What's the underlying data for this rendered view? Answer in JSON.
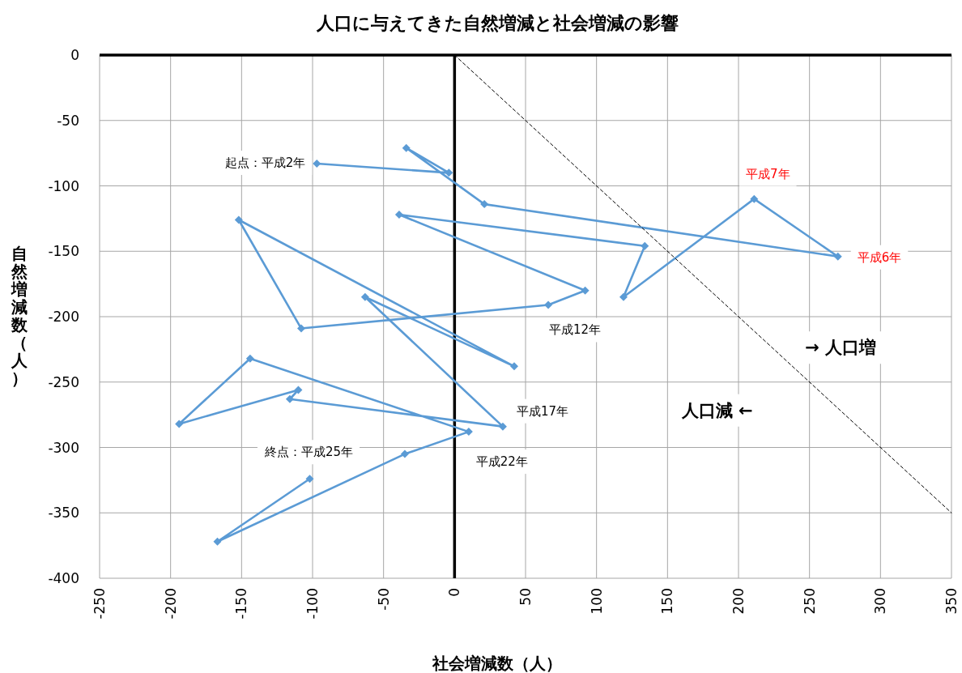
{
  "chart_data": {
    "type": "line",
    "title": "人口に与えてきた自然増減と社会増減の影響",
    "xlabel": "社会増減数（人）",
    "ylabel": "自然増減数（人）",
    "xlim": [
      -250,
      350
    ],
    "xticks": [
      -250,
      -200,
      -150,
      -100,
      -50,
      0,
      50,
      100,
      150,
      200,
      250,
      300,
      350
    ],
    "ylim": [
      -400,
      0
    ],
    "yticks": [
      -400,
      -350,
      -300,
      -250,
      -200,
      -150,
      -100,
      -50,
      0
    ],
    "grid": true,
    "series": [
      {
        "color": "#5b9bd5",
        "marker": "diamond",
        "line_style": "solid",
        "x": [
          -97,
          -4,
          -34,
          21,
          270,
          211,
          119,
          134,
          -39,
          92,
          66,
          -108,
          -152,
          42,
          -63,
          34,
          -116,
          -110,
          -194,
          -144,
          10,
          -35,
          -167,
          -102
        ],
        "values": [
          -83,
          -90,
          -71,
          -114,
          -154,
          -110,
          -185,
          -146,
          -122,
          -180,
          -191,
          -209,
          -126,
          -238,
          -185,
          -284,
          -263,
          -256,
          -282,
          -232,
          -288,
          -305,
          -372,
          -324
        ]
      },
      {
        "color": "#000000",
        "marker": "none",
        "line_style": "dashed",
        "x": [
          0,
          350
        ],
        "values": [
          0,
          -350
        ]
      }
    ],
    "annotations": [
      {
        "text": "起点：平成2年",
        "x": -97,
        "y": -83
      },
      {
        "text": "平成6年",
        "x": 270,
        "y": -154
      },
      {
        "text": "平成7年",
        "x": 211,
        "y": -110
      },
      {
        "text": "平成12年",
        "x": 66,
        "y": -191
      },
      {
        "text": "平成17年",
        "x": 34,
        "y": -284
      },
      {
        "text": "平成22年",
        "x": 10,
        "y": -288
      },
      {
        "text": "終点：平成25年",
        "x": -102,
        "y": -324
      },
      "→ 人口増",
      "人口減 ←"
    ]
  }
}
